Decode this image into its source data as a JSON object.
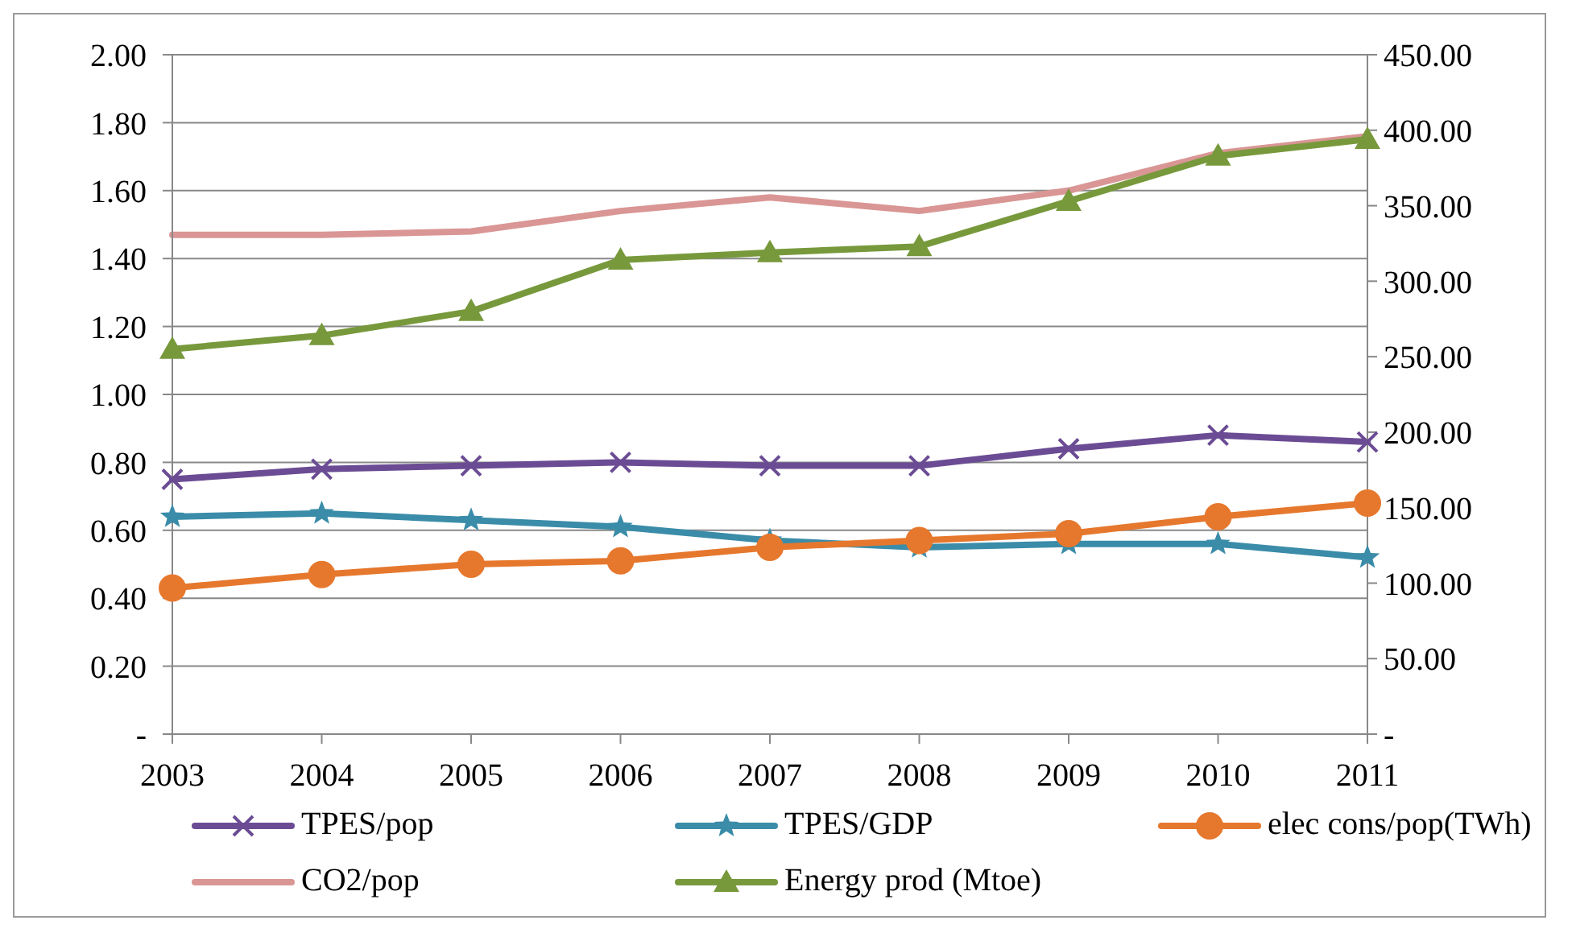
{
  "chart_data": {
    "type": "line",
    "categories": [
      "2003",
      "2004",
      "2005",
      "2006",
      "2007",
      "2008",
      "2009",
      "2010",
      "2011"
    ],
    "series": [
      {
        "name": "TPES/pop",
        "color": "#6b4c94",
        "marker": "cross",
        "values": [
          0.75,
          0.78,
          0.79,
          0.8,
          0.79,
          0.79,
          0.84,
          0.88,
          0.86
        ]
      },
      {
        "name": "TPES/GDP",
        "color": "#3a8ca8",
        "marker": "star",
        "values": [
          0.64,
          0.65,
          0.63,
          0.61,
          0.57,
          0.55,
          0.56,
          0.56,
          0.52
        ]
      },
      {
        "name": "elec cons/pop(TWh)",
        "color": "#e6782e",
        "marker": "circle",
        "values": [
          0.43,
          0.47,
          0.5,
          0.51,
          0.55,
          0.57,
          0.59,
          0.64,
          0.68
        ]
      },
      {
        "name": "CO2/pop",
        "color": "#d99694",
        "marker": "none",
        "values": [
          1.47,
          1.47,
          1.48,
          1.54,
          1.58,
          1.54,
          1.6,
          1.71,
          1.76
        ]
      },
      {
        "name": "Energy prod (Mtoe)",
        "color": "#77993c",
        "marker": "triangle",
        "axis": "y2",
        "values": [
          255,
          264,
          280,
          314,
          319,
          323,
          353,
          383,
          394
        ]
      }
    ],
    "ylim": [
      0,
      2
    ],
    "yticks": [
      {
        "value": 0,
        "label": "-"
      },
      {
        "value": 0.2,
        "label": "0.20"
      },
      {
        "value": 0.4,
        "label": "0.40"
      },
      {
        "value": 0.6,
        "label": "0.60"
      },
      {
        "value": 0.8,
        "label": "0.80"
      },
      {
        "value": 1,
        "label": "1.00"
      },
      {
        "value": 1.2,
        "label": "1.20"
      },
      {
        "value": 1.4,
        "label": "1.40"
      },
      {
        "value": 1.6,
        "label": "1.60"
      },
      {
        "value": 1.8,
        "label": "1.80"
      },
      {
        "value": 2,
        "label": "2.00"
      }
    ],
    "y2lim": [
      0,
      450
    ],
    "y2ticks": [
      {
        "value": 0,
        "label": "-"
      },
      {
        "value": 50,
        "label": "50.00"
      },
      {
        "value": 100,
        "label": "100.00"
      },
      {
        "value": 150,
        "label": "150.00"
      },
      {
        "value": 200,
        "label": "200.00"
      },
      {
        "value": 250,
        "label": "250.00"
      },
      {
        "value": 300,
        "label": "300.00"
      },
      {
        "value": 350,
        "label": "350.00"
      },
      {
        "value": 400,
        "label": "400.00"
      },
      {
        "value": 450,
        "label": "450.00"
      }
    ],
    "grid": "y",
    "legend": "bottom"
  }
}
